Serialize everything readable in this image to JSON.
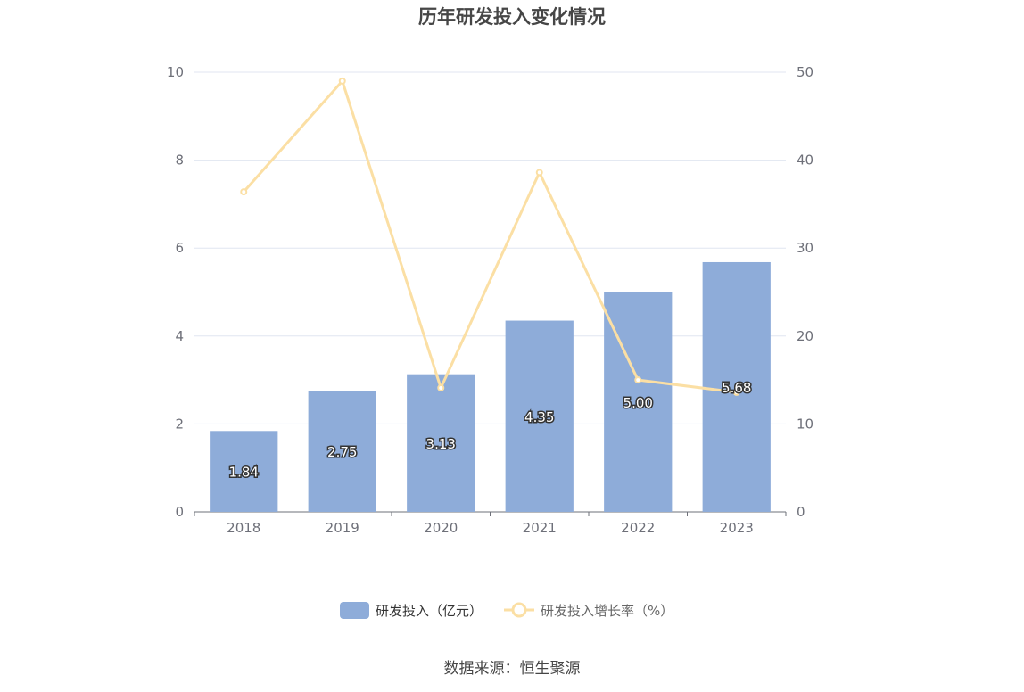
{
  "colors": {
    "bar": "#8eacd9",
    "line": "#fbdfa4",
    "grid": "#e0e6f1",
    "axis": "#6e7079"
  },
  "chart_data": {
    "type": "bar",
    "title": "历年研发投入变化情况",
    "categories": [
      "2018",
      "2019",
      "2020",
      "2021",
      "2022",
      "2023"
    ],
    "y_left": {
      "range": [
        0,
        10
      ],
      "ticks": [
        "0",
        "2",
        "4",
        "6",
        "8",
        "10"
      ]
    },
    "y_right": {
      "range": [
        0,
        50
      ],
      "ticks": [
        "0",
        "10",
        "20",
        "30",
        "40",
        "50"
      ]
    },
    "series": [
      {
        "name": "研发投入（亿元）",
        "type": "bar",
        "axis": "left",
        "values": [
          1.84,
          2.75,
          3.13,
          4.35,
          5.0,
          5.68
        ],
        "labels": [
          "1.84",
          "2.75",
          "3.13",
          "4.35",
          "5.00",
          "5.68"
        ]
      },
      {
        "name": "研发投入增长率（%）",
        "type": "line",
        "axis": "right",
        "values": [
          36.4,
          49.0,
          14.1,
          38.6,
          15.0,
          13.6
        ]
      }
    ],
    "legend_position": "bottom",
    "grid": true
  },
  "footer": {
    "source": "数据来源：恒生聚源"
  }
}
